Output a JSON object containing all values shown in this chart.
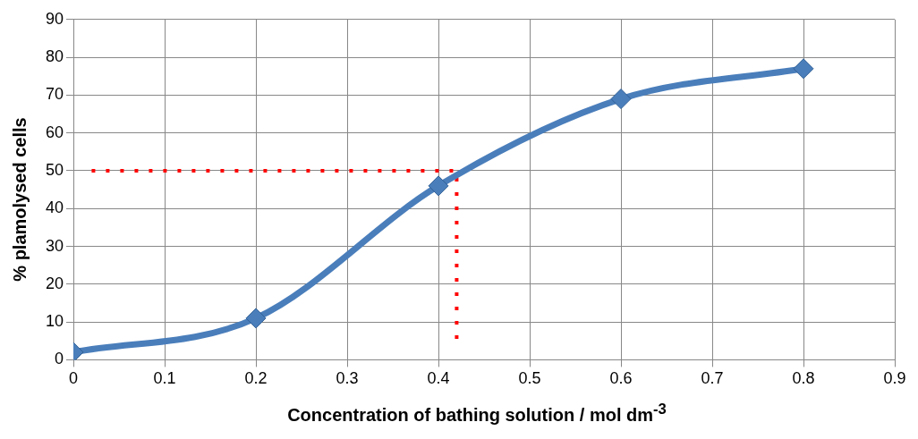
{
  "chart_data": {
    "type": "line",
    "xlabel": "Concentration of bathing solution / mol dm$^{-3}$",
    "ylabel": "% plamolysed cells",
    "xlim": [
      0,
      0.9
    ],
    "xticks": [
      0,
      0.1,
      0.2,
      0.3,
      0.4,
      0.5,
      0.6,
      0.7,
      0.8,
      0.9
    ],
    "ylim": [
      0,
      90
    ],
    "yticks": [
      0,
      10,
      20,
      30,
      40,
      50,
      60,
      70,
      80,
      90
    ],
    "grid": true,
    "legend": false,
    "series": [
      {
        "x": [
          0,
          0.2,
          0.4,
          0.6,
          0.8
        ],
        "values": [
          2,
          11,
          46,
          69,
          77
        ],
        "color": "#4a7ebb",
        "marker": "diamond",
        "line_style": "solid"
      },
      {
        "x": [
          0.02,
          0.42,
          0.42
        ],
        "values": [
          50,
          50,
          5
        ],
        "color": "#ff0000",
        "marker": "none",
        "line_style": "dotted"
      }
    ]
  }
}
